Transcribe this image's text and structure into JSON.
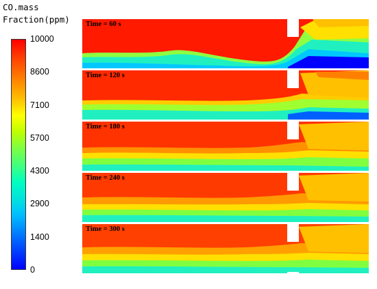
{
  "legend": {
    "title_line1": "CO.mass",
    "title_line2": "Fraction(ppm)",
    "ticks": [
      "10000",
      "8600",
      "7100",
      "5700",
      "4300",
      "2900",
      "1400",
      "0"
    ]
  },
  "panels": [
    {
      "label": "Time = 60 s"
    },
    {
      "label": "Time = 120 s"
    },
    {
      "label": "Time = 180 s"
    },
    {
      "label": "Time = 240 s"
    },
    {
      "label": "Time = 300 s"
    }
  ],
  "colors": {
    "high": "#ff0000",
    "mid_high": "#ff8000",
    "mid": "#ffff00",
    "mid_low": "#00ffc0",
    "low": "#0000ff"
  }
}
